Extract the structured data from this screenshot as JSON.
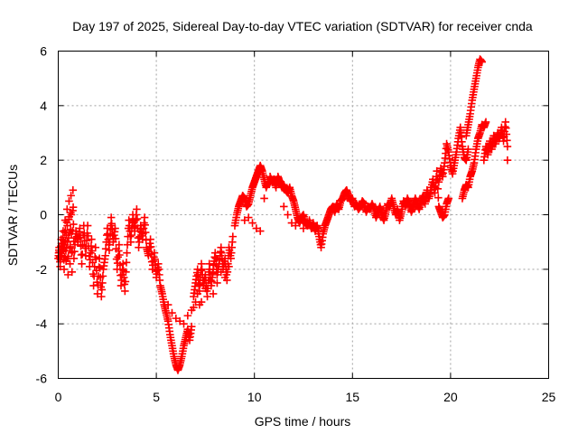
{
  "chart_data": {
    "type": "scatter",
    "title": "Day 197 of 2025, Sidereal Day-to-day VTEC variation (SDTVAR) for receiver cnda",
    "xlabel": "GPS time / hours",
    "ylabel": "SDTVAR / TECUs",
    "xlim": [
      0,
      25
    ],
    "ylim": [
      -6,
      6
    ],
    "x_ticks": [
      0,
      5,
      10,
      15,
      20,
      25
    ],
    "y_ticks": [
      -6,
      -4,
      -2,
      0,
      2,
      4,
      6
    ],
    "x_tick_labels": [
      "0",
      "5",
      "10",
      "15",
      "20",
      "25"
    ],
    "y_tick_labels": [
      "-6",
      "-4",
      "-2",
      "0",
      "2",
      "4",
      "6"
    ],
    "grid": true,
    "legend": "none",
    "marker": "+",
    "color": "#ff0000",
    "series": [
      {
        "points": [
          [
            0.0,
            -1.6
          ],
          [
            0.05,
            -1.2
          ],
          [
            0.1,
            -1.9
          ],
          [
            0.15,
            -0.9
          ],
          [
            0.2,
            -1.5
          ],
          [
            0.25,
            -0.6
          ],
          [
            0.3,
            -2.0
          ],
          [
            0.35,
            -0.2
          ],
          [
            0.4,
            -1.7
          ],
          [
            0.45,
            0.2
          ],
          [
            0.5,
            -2.2
          ],
          [
            0.55,
            0.5
          ],
          [
            0.6,
            -1.8
          ],
          [
            0.65,
            0.7
          ],
          [
            0.7,
            -2.1
          ],
          [
            0.75,
            0.9
          ],
          [
            0.8,
            -1.6
          ],
          [
            0.9,
            -0.6
          ],
          [
            1.0,
            -1.0
          ],
          [
            1.1,
            -0.5
          ],
          [
            1.2,
            -1.8
          ],
          [
            1.3,
            -0.4
          ],
          [
            1.4,
            -1.5
          ],
          [
            1.5,
            -0.4
          ],
          [
            1.6,
            -1.9
          ],
          [
            1.7,
            -0.9
          ],
          [
            1.8,
            -2.6
          ],
          [
            1.9,
            -1.2
          ],
          [
            2.0,
            -2.9
          ],
          [
            2.1,
            -1.6
          ],
          [
            2.2,
            -3.0
          ],
          [
            2.3,
            -2.0
          ],
          [
            2.4,
            -1.5
          ],
          [
            2.5,
            -0.5
          ],
          [
            2.6,
            -1.3
          ],
          [
            2.7,
            -0.1
          ],
          [
            2.8,
            -1.0
          ],
          [
            2.9,
            -0.5
          ],
          [
            3.0,
            -2.0
          ],
          [
            3.1,
            -1.1
          ],
          [
            3.2,
            -2.6
          ],
          [
            3.3,
            -1.8
          ],
          [
            3.4,
            -2.8
          ],
          [
            3.5,
            -1.4
          ],
          [
            3.6,
            -0.2
          ],
          [
            3.7,
            -1.0
          ],
          [
            3.8,
            0.0
          ],
          [
            3.9,
            -0.6
          ],
          [
            4.0,
            0.2
          ],
          [
            4.1,
            -1.2
          ],
          [
            4.2,
            -0.4
          ],
          [
            4.3,
            -0.9
          ],
          [
            4.4,
            -0.1
          ],
          [
            4.5,
            -1.2
          ],
          [
            4.6,
            -1.5
          ],
          [
            4.7,
            -0.9
          ],
          [
            4.8,
            -2.0
          ],
          [
            4.9,
            -1.4
          ],
          [
            5.0,
            -2.3
          ],
          [
            5.1,
            -1.8
          ],
          [
            5.2,
            -2.6
          ],
          [
            5.3,
            -2.9
          ],
          [
            5.4,
            -3.3
          ],
          [
            5.5,
            -3.6
          ],
          [
            5.6,
            -3.9
          ],
          [
            5.7,
            -4.4
          ],
          [
            5.8,
            -4.8
          ],
          [
            5.9,
            -5.2
          ],
          [
            6.0,
            -5.5
          ],
          [
            6.1,
            -5.7
          ],
          [
            6.2,
            -5.5
          ],
          [
            6.3,
            -5.2
          ],
          [
            6.4,
            -4.8
          ],
          [
            6.5,
            -4.5
          ],
          [
            6.6,
            -4.2
          ],
          [
            6.7,
            -4.6
          ],
          [
            6.8,
            -4.1
          ],
          [
            5.6,
            -3.3
          ],
          [
            5.8,
            -3.6
          ],
          [
            6.0,
            -3.8
          ],
          [
            6.2,
            -3.9
          ],
          [
            6.4,
            -4.0
          ],
          [
            6.6,
            -3.7
          ],
          [
            6.8,
            -3.5
          ],
          [
            7.0,
            -3.2
          ],
          [
            7.2,
            -3.3
          ],
          [
            6.9,
            -3.0
          ],
          [
            7.0,
            -2.5
          ],
          [
            7.1,
            -2.0
          ],
          [
            7.2,
            -2.8
          ],
          [
            7.3,
            -1.8
          ],
          [
            7.4,
            -2.6
          ],
          [
            7.5,
            -2.2
          ],
          [
            7.6,
            -3.0
          ],
          [
            7.7,
            -1.8
          ],
          [
            7.8,
            -2.6
          ],
          [
            7.9,
            -2.0
          ],
          [
            8.0,
            -1.4
          ],
          [
            8.1,
            -2.2
          ],
          [
            8.2,
            -1.8
          ],
          [
            8.3,
            -1.2
          ],
          [
            8.4,
            -2.0
          ],
          [
            8.5,
            -1.6
          ],
          [
            8.6,
            -2.4
          ],
          [
            8.7,
            -1.2
          ],
          [
            8.8,
            -1.6
          ],
          [
            8.9,
            -0.8
          ],
          [
            6.9,
            -3.4
          ],
          [
            7.1,
            -2.9
          ],
          [
            7.3,
            -3.2
          ],
          [
            7.5,
            -2.7
          ],
          [
            7.7,
            -2.4
          ],
          [
            7.9,
            -2.9
          ],
          [
            8.1,
            -2.5
          ],
          [
            8.3,
            -2.1
          ],
          [
            8.5,
            -2.3
          ],
          [
            8.7,
            -1.9
          ],
          [
            9.0,
            -0.4
          ],
          [
            9.1,
            0.0
          ],
          [
            9.2,
            0.3
          ],
          [
            9.3,
            0.5
          ],
          [
            9.4,
            0.7
          ],
          [
            9.5,
            0.6
          ],
          [
            9.6,
            0.3
          ],
          [
            9.7,
            0.4
          ],
          [
            9.8,
            0.7
          ],
          [
            9.9,
            1.0
          ],
          [
            10.0,
            1.2
          ],
          [
            10.1,
            1.4
          ],
          [
            10.2,
            1.6
          ],
          [
            10.3,
            1.8
          ],
          [
            10.4,
            1.6
          ],
          [
            10.5,
            1.3
          ],
          [
            10.6,
            1.0
          ],
          [
            10.7,
            1.2
          ],
          [
            9.5,
            -0.2
          ],
          [
            9.7,
            -0.1
          ],
          [
            9.9,
            -0.3
          ],
          [
            10.1,
            -0.5
          ],
          [
            10.3,
            -0.6
          ],
          [
            10.5,
            0.6
          ],
          [
            10.8,
            1.4
          ],
          [
            10.9,
            1.2
          ],
          [
            11.0,
            1.3
          ],
          [
            11.1,
            1.0
          ],
          [
            11.2,
            1.4
          ],
          [
            11.3,
            1.2
          ],
          [
            11.4,
            1.0
          ],
          [
            11.5,
            1.1
          ],
          [
            11.6,
            0.9
          ],
          [
            11.7,
            0.8
          ],
          [
            11.8,
            1.0
          ],
          [
            11.9,
            0.7
          ],
          [
            12.0,
            0.5
          ],
          [
            12.1,
            0.2
          ],
          [
            12.2,
            -0.1
          ],
          [
            12.3,
            -0.3
          ],
          [
            12.4,
            -0.1
          ],
          [
            12.5,
            0.0
          ],
          [
            12.6,
            -0.3
          ],
          [
            12.7,
            -0.4
          ],
          [
            11.5,
            0.3
          ],
          [
            11.7,
            0.0
          ],
          [
            11.9,
            -0.3
          ],
          [
            12.1,
            -0.4
          ],
          [
            12.3,
            -0.2
          ],
          [
            12.5,
            -0.5
          ],
          [
            12.8,
            -0.2
          ],
          [
            12.9,
            -0.5
          ],
          [
            13.0,
            -0.3
          ],
          [
            13.1,
            -0.6
          ],
          [
            13.2,
            -0.4
          ],
          [
            13.3,
            -0.8
          ],
          [
            13.4,
            -1.2
          ],
          [
            13.5,
            -0.7
          ],
          [
            13.6,
            -0.4
          ],
          [
            13.7,
            -0.2
          ],
          [
            13.8,
            0.0
          ],
          [
            13.9,
            0.2
          ],
          [
            14.0,
            0.3
          ],
          [
            14.1,
            0.1
          ],
          [
            14.2,
            0.4
          ],
          [
            14.3,
            0.2
          ],
          [
            14.4,
            0.5
          ],
          [
            14.5,
            0.6
          ],
          [
            14.6,
            0.8
          ],
          [
            14.7,
            0.9
          ],
          [
            14.8,
            0.7
          ],
          [
            14.9,
            0.5
          ],
          [
            15.0,
            0.6
          ],
          [
            15.1,
            0.3
          ],
          [
            15.2,
            0.4
          ],
          [
            15.3,
            0.2
          ],
          [
            15.4,
            0.3
          ],
          [
            15.5,
            0.5
          ],
          [
            15.6,
            0.4
          ],
          [
            15.7,
            0.1
          ],
          [
            15.8,
            0.3
          ],
          [
            15.9,
            0.2
          ],
          [
            16.0,
            0.4
          ],
          [
            16.1,
            0.2
          ],
          [
            16.2,
            -0.1
          ],
          [
            16.3,
            0.1
          ],
          [
            16.4,
            0.3
          ],
          [
            16.5,
            0.0
          ],
          [
            16.6,
            -0.2
          ],
          [
            16.7,
            0.1
          ],
          [
            16.8,
            0.4
          ],
          [
            16.9,
            0.3
          ],
          [
            17.0,
            0.6
          ],
          [
            17.1,
            0.3
          ],
          [
            17.2,
            0.0
          ],
          [
            17.3,
            0.2
          ],
          [
            17.4,
            -0.2
          ],
          [
            17.5,
            0.1
          ],
          [
            17.6,
            0.5
          ],
          [
            17.7,
            0.3
          ],
          [
            17.8,
            0.6
          ],
          [
            17.9,
            0.4
          ],
          [
            18.0,
            0.1
          ],
          [
            18.1,
            0.3
          ],
          [
            18.2,
            0.6
          ],
          [
            18.3,
            0.4
          ],
          [
            18.4,
            0.2
          ],
          [
            18.5,
            0.5
          ],
          [
            18.6,
            0.7
          ],
          [
            18.7,
            0.4
          ],
          [
            18.8,
            0.9
          ],
          [
            18.9,
            0.6
          ],
          [
            19.0,
            0.9
          ],
          [
            19.1,
            1.3
          ],
          [
            19.2,
            0.8
          ],
          [
            19.3,
            1.6
          ],
          [
            19.4,
            0.3
          ],
          [
            19.5,
            0.1
          ],
          [
            19.6,
            -0.1
          ],
          [
            19.7,
            0.0
          ],
          [
            19.8,
            0.4
          ],
          [
            19.9,
            0.6
          ],
          [
            19.4,
            1.2
          ],
          [
            19.5,
            1.7
          ],
          [
            19.6,
            1.4
          ],
          [
            19.7,
            1.9
          ],
          [
            19.8,
            2.6
          ],
          [
            19.9,
            2.3
          ],
          [
            20.0,
            1.8
          ],
          [
            20.1,
            1.5
          ],
          [
            20.2,
            1.9
          ],
          [
            20.3,
            2.3
          ],
          [
            20.4,
            2.8
          ],
          [
            20.5,
            3.2
          ],
          [
            20.6,
            2.5
          ],
          [
            20.7,
            2.1
          ],
          [
            20.8,
            2.0
          ],
          [
            20.9,
            2.4
          ],
          [
            20.8,
            2.9
          ],
          [
            20.9,
            3.3
          ],
          [
            21.0,
            3.7
          ],
          [
            21.1,
            4.2
          ],
          [
            21.2,
            4.6
          ],
          [
            21.3,
            5.0
          ],
          [
            21.4,
            5.4
          ],
          [
            21.5,
            5.7
          ],
          [
            21.6,
            5.6
          ],
          [
            20.6,
            0.6
          ],
          [
            20.7,
            0.9
          ],
          [
            20.8,
            1.1
          ],
          [
            20.9,
            1.0
          ],
          [
            21.0,
            1.4
          ],
          [
            21.1,
            1.6
          ],
          [
            21.2,
            1.9
          ],
          [
            21.3,
            2.4
          ],
          [
            21.4,
            2.8
          ],
          [
            21.5,
            3.0
          ],
          [
            21.6,
            3.3
          ],
          [
            21.7,
            3.2
          ],
          [
            21.8,
            3.4
          ],
          [
            21.7,
            2.0
          ],
          [
            21.8,
            2.5
          ],
          [
            21.9,
            2.2
          ],
          [
            22.0,
            2.7
          ],
          [
            22.1,
            2.4
          ],
          [
            22.2,
            2.9
          ],
          [
            22.3,
            2.6
          ],
          [
            22.4,
            3.0
          ],
          [
            22.5,
            2.8
          ],
          [
            22.6,
            3.2
          ],
          [
            22.7,
            2.7
          ],
          [
            22.8,
            3.4
          ],
          [
            22.9,
            2.5
          ],
          [
            22.9,
            2.0
          ]
        ]
      }
    ]
  }
}
